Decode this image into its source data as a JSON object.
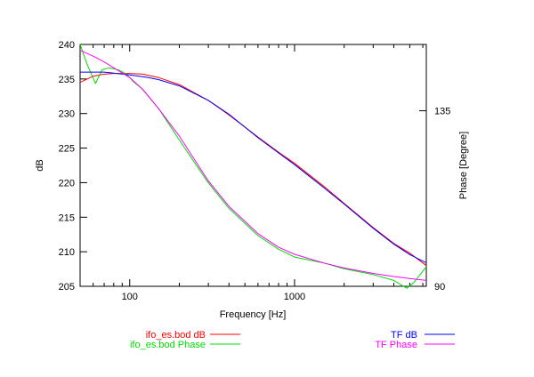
{
  "chart_data": {
    "type": "line",
    "xlabel": "Frequency [Hz]",
    "ylabel": "dB",
    "y2label": "Phase [Degree]",
    "xscale": "log",
    "xlim": [
      50,
      6300
    ],
    "ylim": [
      205,
      240
    ],
    "y2lim": [
      90,
      152
    ],
    "grid": false,
    "legend_placement": "bottom",
    "x_ticks": [
      100,
      1000
    ],
    "x_tick_labels": [
      "100",
      "1000"
    ],
    "y_ticks": [
      205,
      210,
      215,
      220,
      225,
      230,
      235,
      240
    ],
    "y_tick_labels": [
      "205",
      "210",
      "215",
      "220",
      "225",
      "230",
      "235",
      "240"
    ],
    "y2_ticks": [
      90,
      135
    ],
    "y2_tick_labels": [
      "90",
      "135"
    ],
    "series": [
      {
        "name": "ifo_es.bod dB",
        "axis": "left",
        "color": "#ff0000",
        "x": [
          50,
          60,
          70,
          80,
          100,
          120,
          150,
          200,
          300,
          400,
          600,
          800,
          1000,
          1500,
          2000,
          3000,
          4000,
          5000,
          6300
        ],
        "y": [
          234.5,
          235.4,
          235.7,
          235.8,
          235.8,
          235.7,
          235.2,
          234.2,
          231.9,
          229.8,
          226.6,
          224.4,
          222.8,
          219.5,
          217.0,
          213.5,
          211.2,
          209.8,
          208.0
        ]
      },
      {
        "name": "ifo_es.bod Phase",
        "axis": "right",
        "color": "#00dd00",
        "x": [
          50,
          55,
          62,
          68,
          75,
          85,
          95,
          105,
          120,
          150,
          200,
          300,
          400,
          600,
          800,
          1000,
          1500,
          2000,
          3000,
          4000,
          4800,
          5300,
          6300
        ],
        "y": [
          152,
          147,
          142,
          145.5,
          146,
          145.5,
          144.5,
          142.5,
          140.5,
          135.5,
          127.5,
          116.5,
          110.0,
          103.0,
          99.5,
          97.5,
          96.0,
          94.5,
          93.0,
          91.5,
          89.5,
          91.0,
          95.0
        ]
      },
      {
        "name": "TF dB",
        "axis": "left",
        "color": "#0000ff",
        "x": [
          50,
          70,
          100,
          130,
          150,
          200,
          300,
          400,
          600,
          800,
          1000,
          1500,
          2000,
          3000,
          4000,
          5000,
          6300
        ],
        "y": [
          236.0,
          236.0,
          235.6,
          235.2,
          234.9,
          234.0,
          231.9,
          229.9,
          226.5,
          224.3,
          222.6,
          219.3,
          216.9,
          213.4,
          211.1,
          209.6,
          208.4
        ]
      },
      {
        "name": "TF Phase",
        "axis": "right",
        "color": "#ff00ff",
        "x": [
          50,
          60,
          70,
          80,
          100,
          120,
          150,
          200,
          300,
          400,
          600,
          800,
          1000,
          1500,
          2000,
          3000,
          4000,
          5000,
          6300
        ],
        "y": [
          150.5,
          149.0,
          147.5,
          146.0,
          143.5,
          140.5,
          135.5,
          128.5,
          117.0,
          110.5,
          103.5,
          100.0,
          98.2,
          96.0,
          94.7,
          93.3,
          92.5,
          92.0,
          91.5
        ]
      }
    ]
  }
}
